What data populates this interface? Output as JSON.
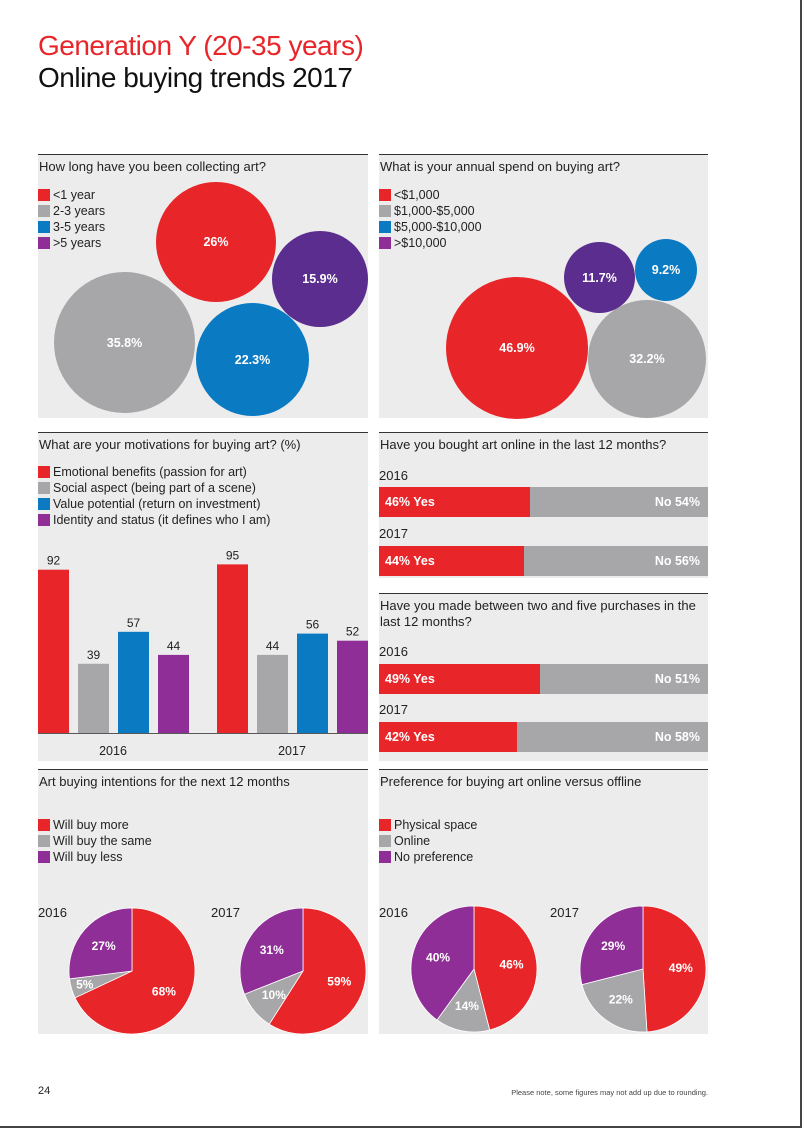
{
  "header": {
    "title_line1": "Generation Y (20-35 years)",
    "title_line2": "Online buying trends 2017"
  },
  "colors": {
    "red": "#e8262a",
    "grey": "#a7a7a9",
    "blue": "#0a7ac2",
    "purple": "#8e2e96",
    "dark_purple": "#5a2d8e"
  },
  "collecting": {
    "title": "How long have you been collecting art?",
    "legend": [
      "<1 year",
      "2-3 years",
      "3-5 years",
      ">5 years"
    ],
    "labels": [
      "26%",
      "35.8%",
      "22.3%",
      "15.9%"
    ]
  },
  "spend": {
    "title": "What is your annual spend on buying art?",
    "legend": [
      "<$1,000",
      "$1,000-$5,000",
      "$5,000-$10,000",
      ">$10,000"
    ],
    "labels": [
      "46.9%",
      "32.2%",
      "9.2%",
      "11.7%"
    ]
  },
  "motivations": {
    "title": "What are your motivations for buying art? (%)",
    "legend": [
      "Emotional benefits (passion for art)",
      "Social aspect (being part of a scene)",
      "Value potential (return on investment)",
      "Identity and status (it defines who I am)"
    ]
  },
  "bought_online": {
    "title": "Have you bought art online in the last 12 months?",
    "rows": [
      {
        "year": "2016",
        "yes_label": "46% Yes",
        "no_label": "No 54%"
      },
      {
        "year": "2017",
        "yes_label": "44% Yes",
        "no_label": "No 56%"
      }
    ]
  },
  "purchases": {
    "title_line1": "Have you made between two and five purchases in the",
    "title_line2": "last 12 months?",
    "rows": [
      {
        "year": "2016",
        "yes_label": "49% Yes",
        "no_label": "No 51%"
      },
      {
        "year": "2017",
        "yes_label": "42% Yes",
        "no_label": "No 58%"
      }
    ]
  },
  "intentions": {
    "title": "Art buying intentions for the next 12 months",
    "legend": [
      "Will buy more",
      "Will buy the same",
      "Will buy less"
    ],
    "years": [
      "2016",
      "2017"
    ]
  },
  "preference": {
    "title": "Preference for buying art online versus offline",
    "legend": [
      "Physical space",
      "Online",
      "No preference"
    ],
    "years": [
      "2016",
      "2017"
    ]
  },
  "footer": {
    "page_number": "24",
    "note": "Please note, some figures may not add up due to rounding."
  },
  "chart_data": [
    {
      "type": "bubble",
      "title": "How long have you been collecting art?",
      "categories": [
        "<1 year",
        "2-3 years",
        "3-5 years",
        ">5 years"
      ],
      "values": [
        26,
        35.8,
        22.3,
        15.9
      ]
    },
    {
      "type": "bubble",
      "title": "What is your annual spend on buying art?",
      "categories": [
        "<$1,000",
        "$1,000-$5,000",
        "$5,000-$10,000",
        ">$10,000"
      ],
      "values": [
        46.9,
        32.2,
        9.2,
        11.7
      ]
    },
    {
      "type": "bar",
      "title": "What are your motivations for buying art? (%)",
      "categories": [
        "2016",
        "2017"
      ],
      "series": [
        {
          "name": "Emotional benefits (passion for art)",
          "values": [
            92,
            95
          ]
        },
        {
          "name": "Social aspect (being part of a scene)",
          "values": [
            39,
            44
          ]
        },
        {
          "name": "Value potential (return on investment)",
          "values": [
            57,
            56
          ]
        },
        {
          "name": "Identity and status (it defines who I am)",
          "values": [
            44,
            52
          ]
        }
      ],
      "ylim": [
        0,
        100
      ]
    },
    {
      "type": "bar",
      "orientation": "horizontal",
      "stacked": true,
      "title": "Have you bought art online in the last 12 months?",
      "categories": [
        "2016",
        "2017"
      ],
      "series": [
        {
          "name": "Yes",
          "values": [
            46,
            44
          ]
        },
        {
          "name": "No",
          "values": [
            54,
            56
          ]
        }
      ]
    },
    {
      "type": "bar",
      "orientation": "horizontal",
      "stacked": true,
      "title": "Have you made between two and five purchases in the last 12 months?",
      "categories": [
        "2016",
        "2017"
      ],
      "series": [
        {
          "name": "Yes",
          "values": [
            49,
            42
          ]
        },
        {
          "name": "No",
          "values": [
            51,
            58
          ]
        }
      ]
    },
    {
      "type": "pie",
      "title": "Art buying intentions for the next 12 months",
      "year": "2016",
      "categories": [
        "Will buy more",
        "Will buy the same",
        "Will buy less"
      ],
      "values": [
        68,
        5,
        27
      ]
    },
    {
      "type": "pie",
      "title": "Art buying intentions for the next 12 months",
      "year": "2017",
      "categories": [
        "Will buy more",
        "Will buy the same",
        "Will buy less"
      ],
      "values": [
        59,
        10,
        31
      ]
    },
    {
      "type": "pie",
      "title": "Preference for buying art online versus offline",
      "year": "2016",
      "categories": [
        "Physical space",
        "Online",
        "No preference"
      ],
      "values": [
        46,
        14,
        40
      ]
    },
    {
      "type": "pie",
      "title": "Preference for buying art online versus offline",
      "year": "2017",
      "categories": [
        "Physical space",
        "Online",
        "No preference"
      ],
      "values": [
        49,
        22,
        29
      ]
    }
  ]
}
